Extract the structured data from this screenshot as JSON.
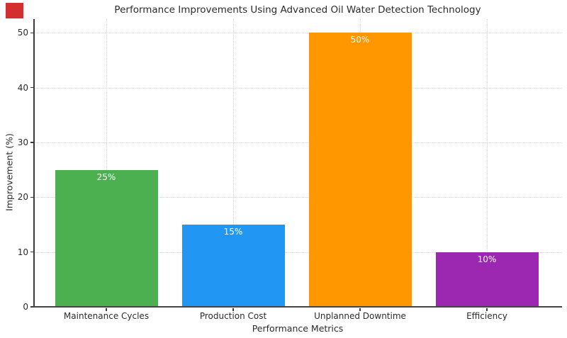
{
  "marker": {
    "name": "red-highlight-box",
    "color": "#d32f2f"
  },
  "chart_data": {
    "type": "bar",
    "title": "Performance Improvements Using Advanced Oil Water Detection Technology",
    "xlabel": "Performance Metrics",
    "ylabel": "Improvement (%)",
    "categories": [
      "Maintenance Cycles",
      "Production Cost",
      "Unplanned Downtime",
      "Efficiency"
    ],
    "values": [
      25,
      15,
      50,
      10
    ],
    "value_labels": [
      "25%",
      "15%",
      "50%",
      "10%"
    ],
    "bar_colors": [
      "#4caf50",
      "#2196f3",
      "#ff9800",
      "#9c27b0"
    ],
    "yticks": [
      0,
      10,
      20,
      30,
      40,
      50
    ],
    "ylim": [
      0,
      52.5
    ],
    "grid": "dotted, horizontal and vertical",
    "legend": "none",
    "spines": [
      "left",
      "bottom"
    ]
  }
}
